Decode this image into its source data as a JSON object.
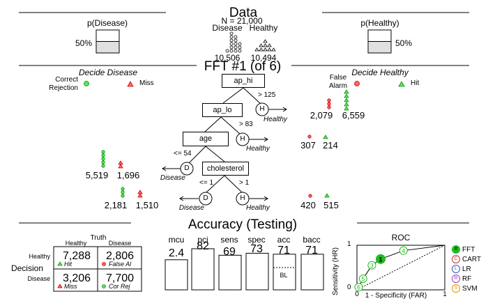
{
  "data_panel": {
    "title": "Data",
    "n_label": "N = 21,000",
    "class_labels": [
      "Disease",
      "Healthy"
    ],
    "class_counts": [
      "10,506",
      "10,494"
    ],
    "p_disease_label": "p(Disease)",
    "p_healthy_label": "p(Healthy)",
    "p_disease_pct": "50%",
    "p_healthy_pct": "50%",
    "p_disease_value": 0.5,
    "p_healthy_value": 0.5
  },
  "tree_panel": {
    "title": "FFT #1 (of 6)",
    "decide_left": "Decide Disease",
    "decide_right": "Decide Healthy",
    "legend_left": {
      "correct_rejection": "Correct\nRejection",
      "miss": "Miss"
    },
    "legend_right": {
      "false_alarm": "False\nAlarm",
      "hit": "Hit"
    },
    "nodes": [
      {
        "label": "ap_hi",
        "threshold": "> 125",
        "exit": "H",
        "exit_label": "Healthy",
        "exit_counts": [
          "2,079",
          "6,559"
        ]
      },
      {
        "label": "ap_lo",
        "threshold": "> 83",
        "exit": "H",
        "exit_label": "Healthy",
        "exit_counts": [
          "307",
          "214"
        ]
      },
      {
        "label": "age",
        "threshold": "<= 54",
        "exit": "D",
        "exit_label": "Disease",
        "exit_counts": [
          "5,519",
          "1,696"
        ]
      },
      {
        "label": "cholesterol",
        "threshold_left": "<= 1",
        "exit_left": "D",
        "exit_left_label": "Disease",
        "exit_left_counts": [
          "2,181",
          "1,510"
        ],
        "threshold_right": "> 1",
        "exit_right": "H",
        "exit_right_label": "Healthy",
        "exit_right_counts": [
          "420",
          "515"
        ]
      }
    ]
  },
  "accuracy_panel": {
    "title": "Accuracy (Testing)",
    "confusion": {
      "truth_label": "Truth",
      "decision_label": "Decision",
      "col_labels": [
        "Healthy",
        "Disease"
      ],
      "row_labels": [
        "Healthy",
        "Disease"
      ],
      "cells": [
        {
          "value": "7,288",
          "label": "Hit"
        },
        {
          "value": "2,806",
          "label": "False Al"
        },
        {
          "value": "3,206",
          "label": "Miss"
        },
        {
          "value": "7,700",
          "label": "Cor Rej"
        }
      ]
    },
    "stats": [
      {
        "name": "mcu",
        "value": "2.4",
        "level": 0.6
      },
      {
        "name": "pci",
        "value": "82",
        "level": 0.82
      },
      {
        "name": "sens",
        "value": "69",
        "level": 0.69
      },
      {
        "name": "spec",
        "value": "73",
        "level": 0.73
      },
      {
        "name": "acc",
        "value": "71",
        "level": 0.71
      },
      {
        "name": "bacc",
        "value": "71",
        "level": 0.71
      }
    ],
    "baseline_label": "BL",
    "roc": {
      "title": "ROC",
      "xlabel": "1 - Specificity (FAR)",
      "ylabel": "Sensitivity (HR)",
      "ticks": [
        "0",
        "1"
      ],
      "fft_points": [
        {
          "label": "1",
          "far": 0.27,
          "hr": 0.69
        },
        {
          "label": "3",
          "far": 0.17,
          "hr": 0.55
        },
        {
          "label": "4",
          "far": 0.53,
          "hr": 0.88
        },
        {
          "label": "5",
          "far": 0.07,
          "hr": 0.25
        },
        {
          "label": "6",
          "far": 0.02,
          "hr": 0.06
        }
      ],
      "legend": [
        {
          "code": "#",
          "name": "FFT",
          "color": "#22bb22"
        },
        {
          "code": "C",
          "name": "CART",
          "color": "#cc3333"
        },
        {
          "code": "L",
          "name": "LR",
          "color": "#3355cc"
        },
        {
          "code": "R",
          "name": "RF",
          "color": "#9944bb"
        },
        {
          "code": "S",
          "name": "SVM",
          "color": "#dd9900"
        }
      ]
    }
  }
}
